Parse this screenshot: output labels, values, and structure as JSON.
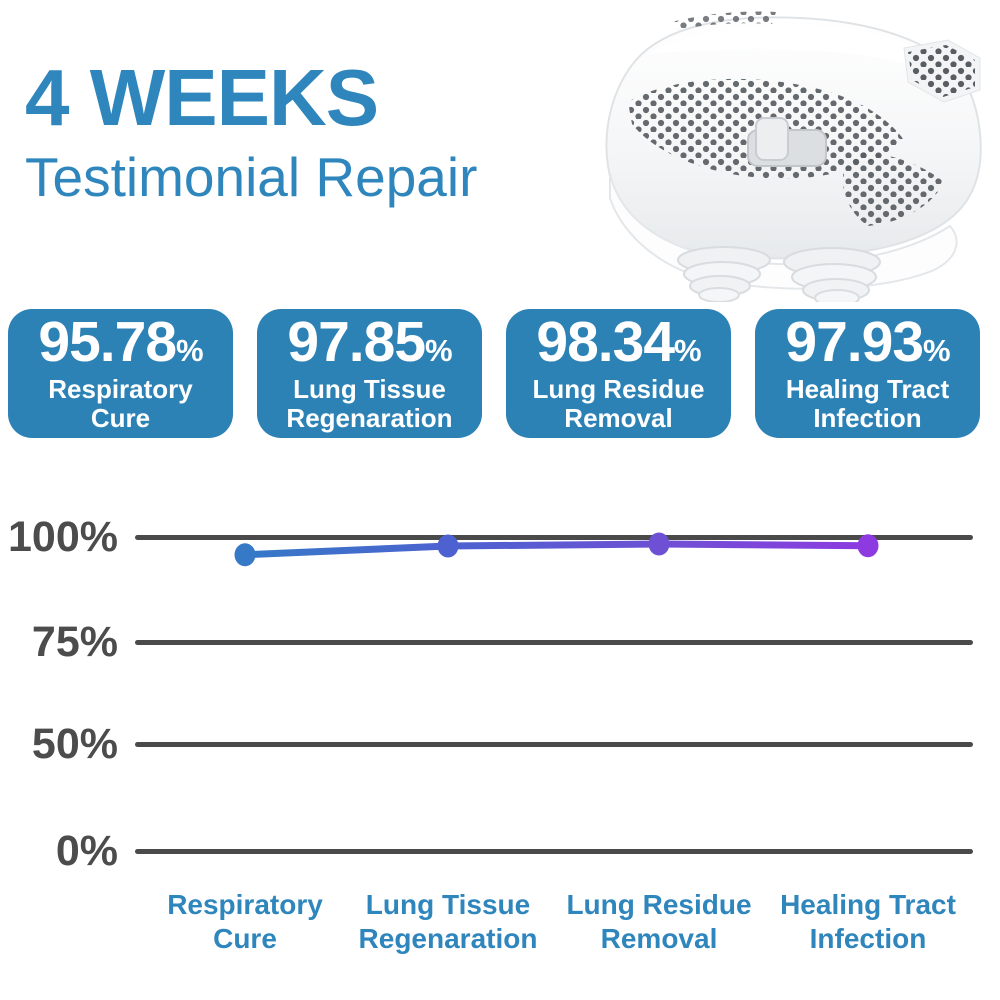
{
  "header": {
    "title": "4 WEEKS",
    "subtitle": "Testimonial Repair"
  },
  "stats": [
    {
      "value": "95.78",
      "unit": "%",
      "label": "Respiratory\nCure"
    },
    {
      "value": "97.85",
      "unit": "%",
      "label": "Lung Tissue\nRegenaration"
    },
    {
      "value": "98.34",
      "unit": "%",
      "label": "Lung Residue\nRemoval"
    },
    {
      "value": "97.93",
      "unit": "%",
      "label": "Healing Tract\nInfection"
    }
  ],
  "chart_data": {
    "type": "line",
    "title": "",
    "xlabel": "",
    "ylabel": "",
    "categories": [
      "Respiratory Cure",
      "Lung Tissue Regenaration",
      "Lung Residue Removal",
      "Healing Tract Infection"
    ],
    "category_labels": [
      "Respiratory\nCure",
      "Lung Tissue\nRegenaration",
      "Lung Residue\nRemoval",
      "Healing Tract\nInfection"
    ],
    "values": [
      95.78,
      97.85,
      98.34,
      97.93
    ],
    "ytick_labels": [
      "100%",
      "75%",
      "50%",
      "0%"
    ],
    "ytick_values": [
      100,
      75,
      50,
      0
    ],
    "ylim": [
      0,
      100
    ],
    "grid": true,
    "legend": false,
    "line_gradient": [
      "#3579c7",
      "#4d62d0",
      "#6e50d4",
      "#8d3be0"
    ],
    "point_colors": [
      "#3579c7",
      "#4d62d0",
      "#6e50d4",
      "#8d3be0"
    ]
  },
  "colors": {
    "accent_blue": "#2e86bd",
    "card_background": "#2d82b5",
    "grid_line": "#4a4a4a",
    "tick_text": "#4c4c4c",
    "line_start": "#3579c7",
    "line_end": "#8d3be0"
  }
}
